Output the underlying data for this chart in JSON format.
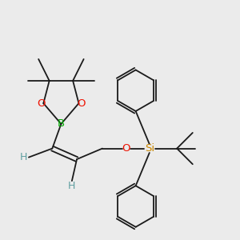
{
  "bg_color": "#ebebeb",
  "bond_color": "#1a1a1a",
  "B_color": "#00aa00",
  "O_color": "#ee1100",
  "Si_color": "#cc8800",
  "H_color": "#5f9ea0",
  "fig_w": 3.0,
  "fig_h": 3.0,
  "dpi": 100,
  "xlim": [
    0,
    12
  ],
  "ylim": [
    0,
    12
  ]
}
